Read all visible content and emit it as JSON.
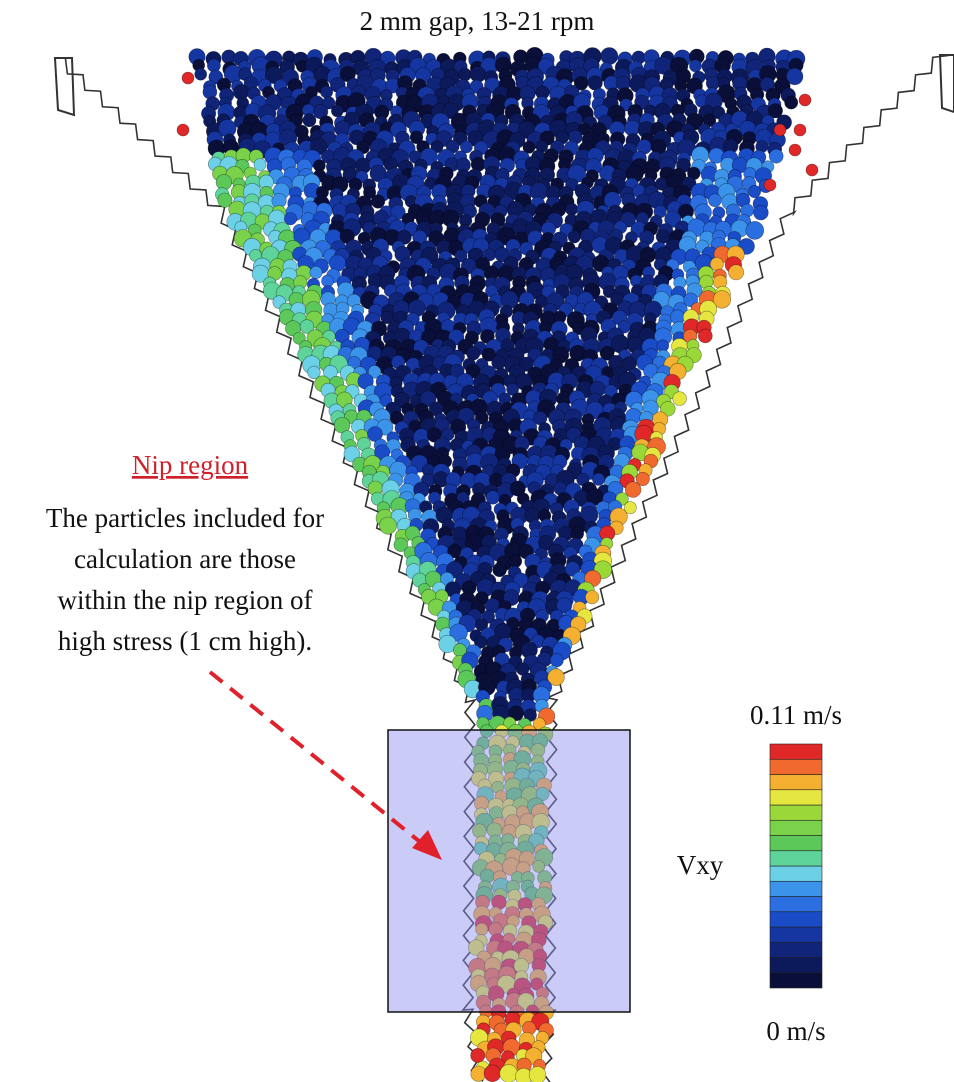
{
  "title": "2 mm gap, 13-21 rpm",
  "annotation": {
    "heading": "Nip region",
    "lines": [
      "The particles included for",
      "calculation are those",
      "within the nip region of",
      "high stress (1 cm high)."
    ]
  },
  "colorbar": {
    "label": "Vxy",
    "max_label": "0.11 m/s",
    "min_label": "0 m/s"
  }
}
